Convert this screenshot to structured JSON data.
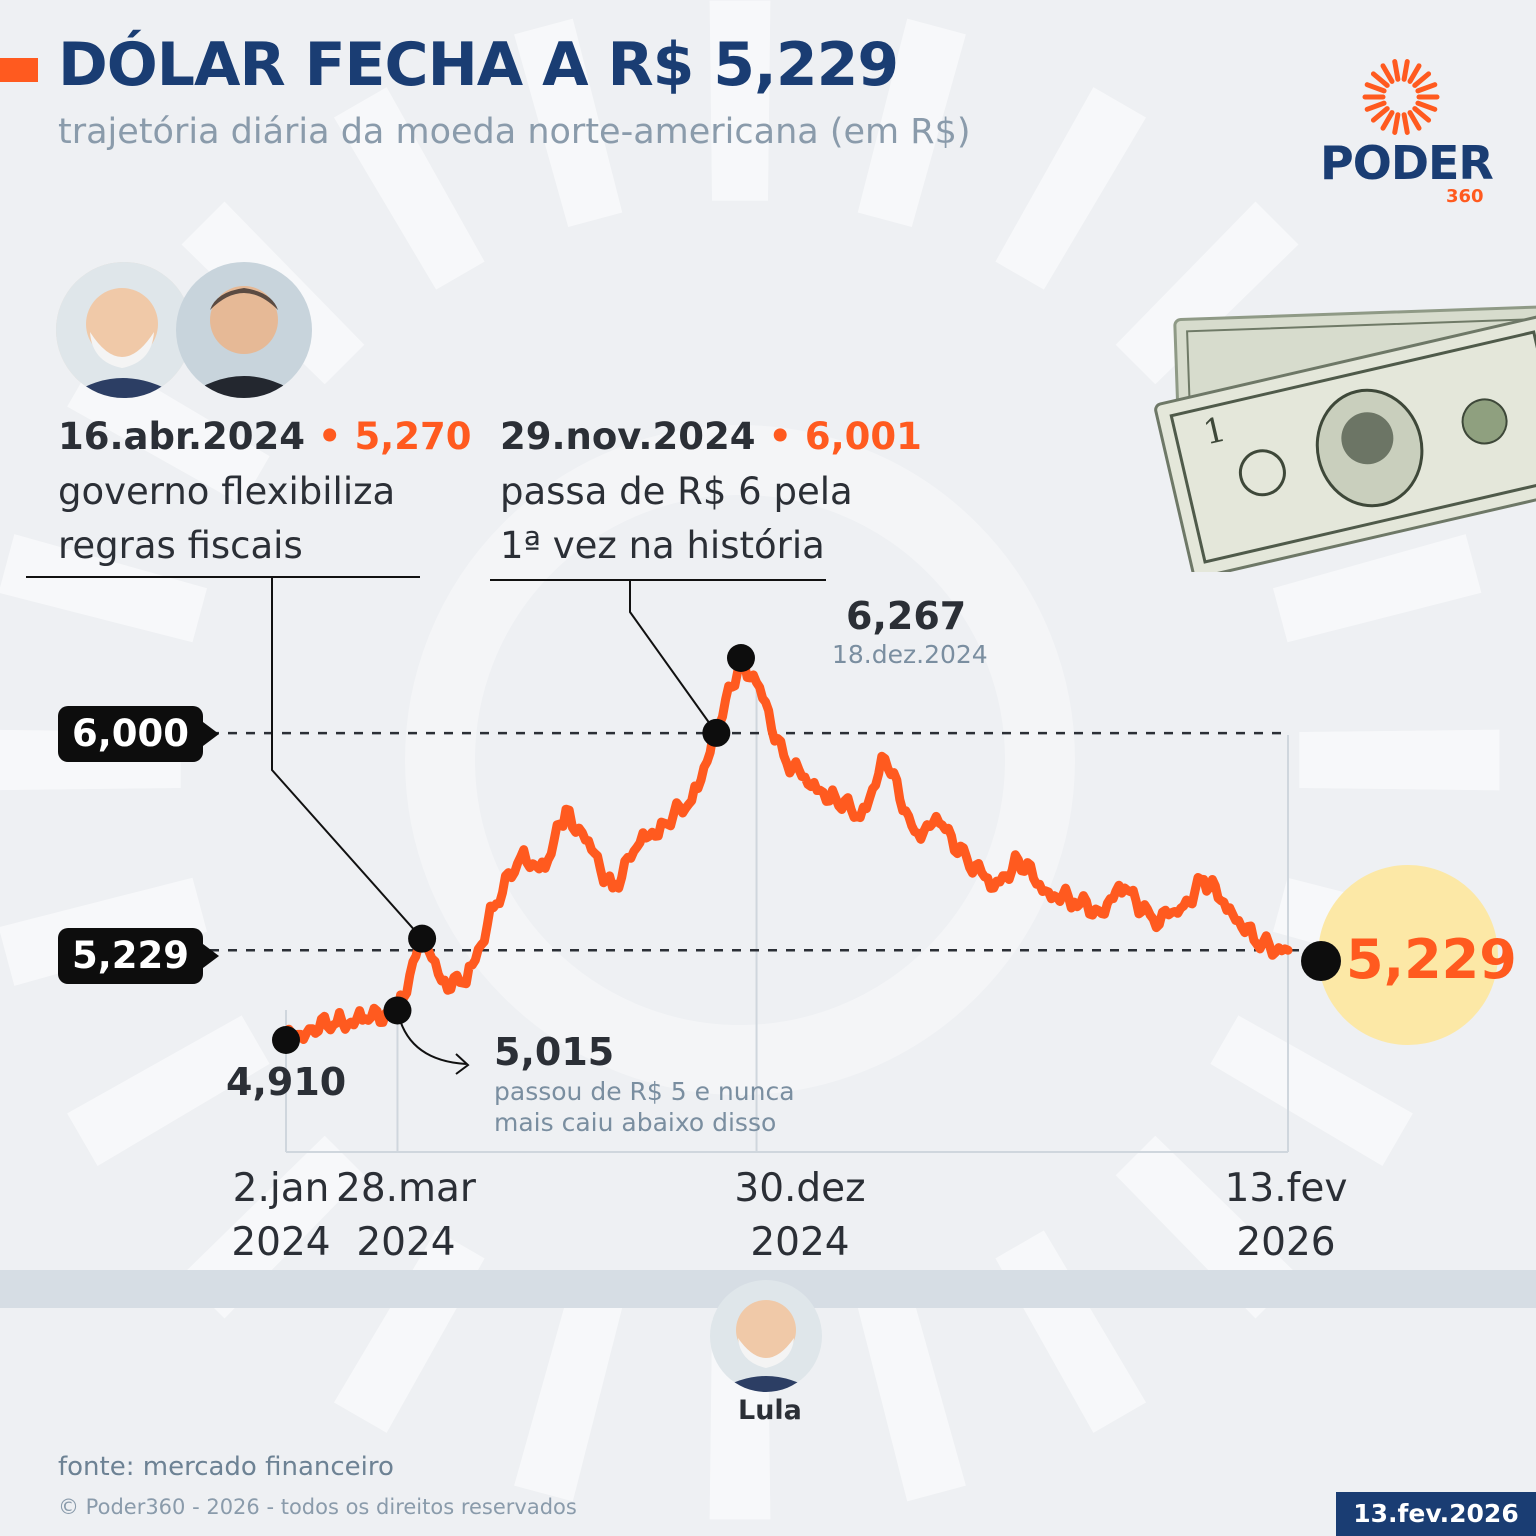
{
  "header": {
    "title": "DÓLAR FECHA A R$ 5,229",
    "subtitle": "trajetória diária da moeda norte-americana (em R$)"
  },
  "logo": {
    "word": "PODER",
    "number": "360",
    "colors": {
      "primary": "#1a3d73",
      "accent": "#ff5a1f"
    }
  },
  "annotations": {
    "fiscal": {
      "date": "16.abr.2024",
      "sep": " • ",
      "value": "5,270",
      "line1": "governo flexibiliza",
      "line2": "regras fiscais"
    },
    "six": {
      "date": "29.nov.2024",
      "sep": " • ",
      "value": "6,001",
      "line1": "passa de R$ 6 pela",
      "line2": "1ª vez na história"
    },
    "peak": {
      "value": "6,267",
      "date": "18.dez.2024"
    },
    "five": {
      "value": "5,015",
      "line1": "passou de R$ 5 e nunca",
      "line2": "mais caiu abaixo disso"
    },
    "start": {
      "value": "4,910"
    }
  },
  "reference_tags": {
    "six": "6,000",
    "current": "5,229"
  },
  "final_value": "5,229",
  "x_labels": [
    {
      "l1": "2.jan",
      "l2": "2024"
    },
    {
      "l1": "28.mar",
      "l2": "2024"
    },
    {
      "l1": "30.dez",
      "l2": "2024"
    },
    {
      "l1": "13.fev",
      "l2": "2026"
    }
  ],
  "timeline": {
    "president": "Lula"
  },
  "footer": {
    "source": "fonte: mercado financeiro",
    "copyright": "© Poder360 - 2026 - todos os direitos reservados",
    "date": "13.fev.2026"
  },
  "chart_data": {
    "type": "line",
    "title": "DÓLAR FECHA A R$ 5,229",
    "subtitle": "trajetória diária da moeda norte-americana (em R$)",
    "series_color": "#ff5a1f",
    "ylim": [
      4.85,
      6.3
    ],
    "reference_lines": [
      6.0,
      5.229
    ],
    "x": [
      "2024-01-02",
      "2024-01-20",
      "2024-02-10",
      "2024-03-01",
      "2024-03-28",
      "2024-04-16",
      "2024-05-01",
      "2024-05-20",
      "2024-06-10",
      "2024-07-01",
      "2024-07-20",
      "2024-08-05",
      "2024-08-20",
      "2024-09-10",
      "2024-10-01",
      "2024-10-20",
      "2024-11-10",
      "2024-11-29",
      "2024-12-18",
      "2024-12-30",
      "2025-01-20",
      "2025-02-10",
      "2025-03-01",
      "2025-03-20",
      "2025-04-08",
      "2025-05-01",
      "2025-05-20",
      "2025-06-10",
      "2025-07-01",
      "2025-07-20",
      "2025-08-10",
      "2025-09-01",
      "2025-09-20",
      "2025-10-10",
      "2025-11-01",
      "2025-11-20",
      "2025-12-10",
      "2025-12-30",
      "2026-01-20",
      "2026-02-13"
    ],
    "values": [
      4.91,
      4.95,
      4.97,
      4.98,
      5.015,
      5.27,
      5.12,
      5.11,
      5.38,
      5.56,
      5.52,
      5.73,
      5.62,
      5.45,
      5.61,
      5.68,
      5.76,
      6.001,
      6.267,
      6.18,
      5.92,
      5.81,
      5.77,
      5.7,
      5.91,
      5.65,
      5.68,
      5.56,
      5.45,
      5.55,
      5.44,
      5.4,
      5.37,
      5.45,
      5.34,
      5.36,
      5.48,
      5.38,
      5.25,
      5.229
    ],
    "highlighted_points": [
      {
        "x": "2024-01-02",
        "y": 4.91
      },
      {
        "x": "2024-03-28",
        "y": 5.015
      },
      {
        "x": "2024-04-16",
        "y": 5.27
      },
      {
        "x": "2024-11-29",
        "y": 6.001
      },
      {
        "x": "2024-12-18",
        "y": 6.267
      },
      {
        "x": "2026-02-13",
        "y": 5.229
      }
    ],
    "x_tick_labels": [
      "2.jan 2024",
      "28.mar 2024",
      "30.dez 2024",
      "13.fev 2026"
    ]
  }
}
